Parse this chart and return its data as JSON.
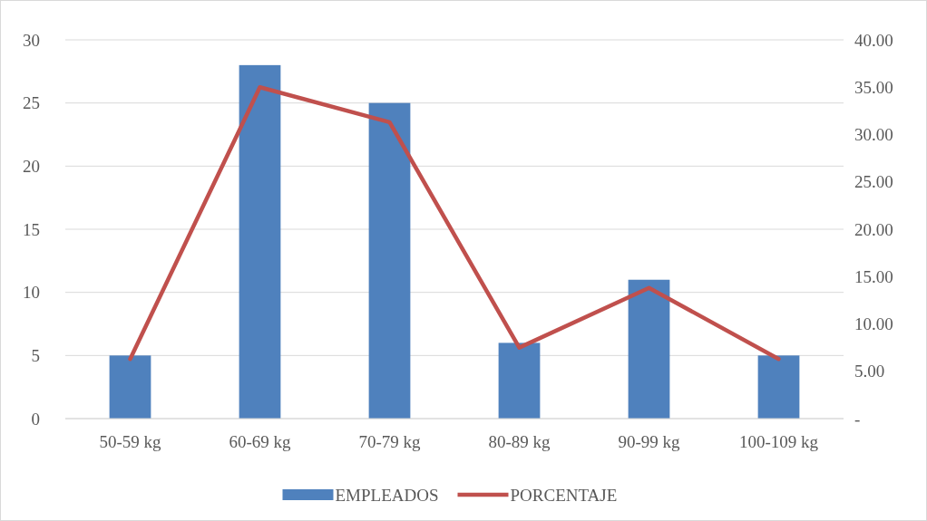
{
  "chart_data": {
    "type": "bar",
    "categories": [
      "50-59 kg",
      "60-69 kg",
      "70-79 kg",
      "80-89 kg",
      "90-99 kg",
      "100-109 kg"
    ],
    "series": [
      {
        "name": "EMPLEADOS",
        "color": "#4f81bd",
        "values": [
          5,
          28,
          25,
          6,
          11,
          5
        ]
      },
      {
        "name": "PORCENTAJE",
        "type": "line",
        "axis": "y2",
        "color": "#c0504d",
        "values": [
          6.3,
          35,
          31.3,
          7.5,
          13.8,
          6.3
        ]
      }
    ],
    "ylim": [
      0,
      30
    ],
    "yticks": [
      0,
      5,
      10,
      15,
      20,
      25,
      30
    ],
    "y2lim": [
      0,
      40
    ],
    "y2ticks": [
      {
        "value": 0,
        "label": "-"
      },
      {
        "value": 5,
        "label": "5.00"
      },
      {
        "value": 10,
        "label": "10.00"
      },
      {
        "value": 15,
        "label": "15.00"
      },
      {
        "value": 20,
        "label": "20.00"
      },
      {
        "value": 25,
        "label": "25.00"
      },
      {
        "value": 30,
        "label": "30.00"
      },
      {
        "value": 35,
        "label": "35.00"
      },
      {
        "value": 40,
        "label": "40.00"
      }
    ],
    "grid": "y",
    "legend": "bottom",
    "marker": "none",
    "line_style": "solid"
  }
}
